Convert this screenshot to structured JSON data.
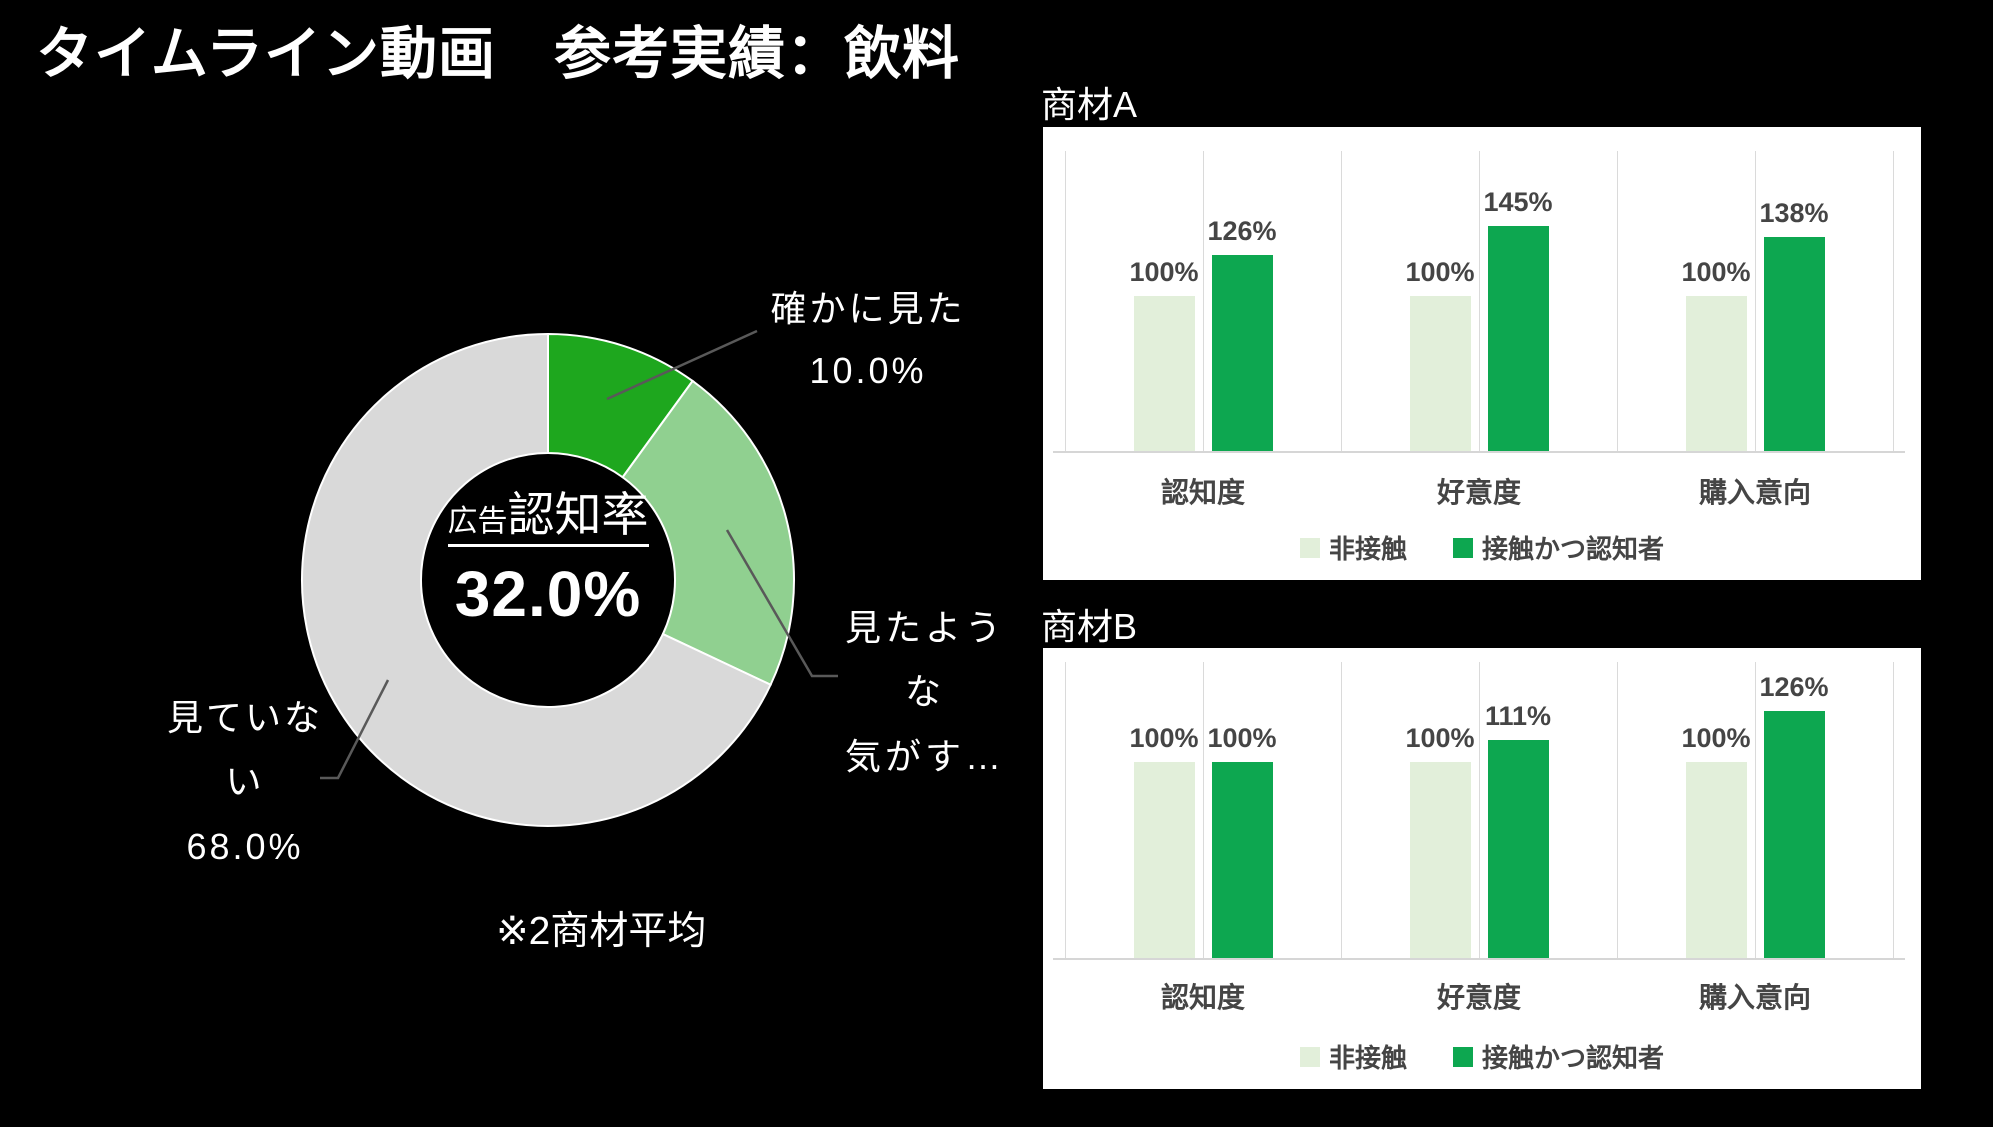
{
  "slide": {
    "title": "タイムライン動画　参考実績：飲料"
  },
  "chart_data": [
    {
      "type": "pie",
      "subtype": "donut",
      "center_title_prefix": "広告",
      "center_title": "認知率",
      "center_value": "32.0%",
      "labels": [
        "確かに見た",
        "見たような気がす…",
        "見ていない"
      ],
      "values": [
        10.0,
        22.0,
        68.0
      ],
      "display_values": [
        "10.0%",
        "",
        "68.0%"
      ],
      "colors": [
        "#1EA71E",
        "#90D090",
        "#D9D9D9"
      ],
      "note": "※2商材平均",
      "callouts": {
        "a": {
          "lines": [
            "確かに見た",
            "10.0%"
          ]
        },
        "b": {
          "lines": [
            "見たよう",
            "な",
            "気がす…"
          ]
        },
        "c": {
          "lines": [
            "見ていな",
            "い",
            "68.0%"
          ]
        }
      }
    },
    {
      "type": "bar",
      "title": "商材A",
      "categories": [
        "認知度",
        "好意度",
        "購入意向"
      ],
      "series": [
        {
          "name": "非接触",
          "color": "#E2EFDA",
          "values": [
            100,
            100,
            100
          ],
          "labels": [
            "100%",
            "100%",
            "100%"
          ]
        },
        {
          "name": "接触かつ認知者",
          "color": "#0DA750",
          "values": [
            126,
            145,
            138
          ],
          "labels": [
            "126%",
            "145%",
            "138%"
          ]
        }
      ],
      "value_suffix": "%",
      "ylim": [
        0,
        193
      ],
      "grid": "vertical",
      "legend_position": "bottom"
    },
    {
      "type": "bar",
      "title": "商材B",
      "categories": [
        "認知度",
        "好意度",
        "購入意向"
      ],
      "series": [
        {
          "name": "非接触",
          "color": "#E2EFDA",
          "values": [
            100,
            100,
            100
          ],
          "labels": [
            "100%",
            "100%",
            "100%"
          ]
        },
        {
          "name": "接触かつ認知者",
          "color": "#0DA750",
          "values": [
            100,
            111,
            126
          ],
          "labels": [
            "100%",
            "111%",
            "126%"
          ]
        }
      ],
      "value_suffix": "%",
      "ylim": [
        0,
        151
      ],
      "grid": "vertical",
      "legend_position": "bottom"
    }
  ]
}
